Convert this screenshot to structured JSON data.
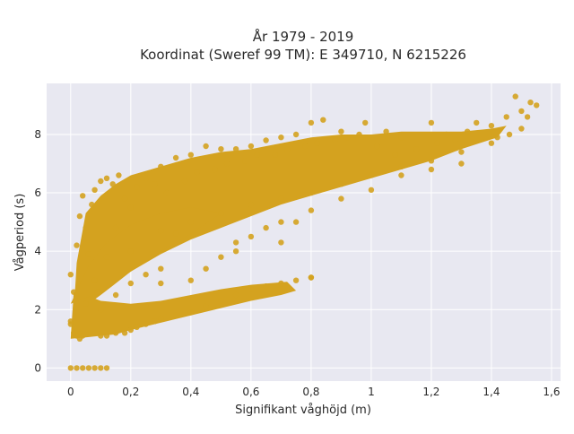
{
  "colors": {
    "point": "#d4a21f",
    "plot_background": "#e8e8f1",
    "grid": "#ffffff",
    "page_background": "#ffffff",
    "text": "#2a2a2a"
  },
  "chart_data": {
    "type": "scatter",
    "title_line1": "År 1979 - 2019",
    "title_line2": "Koordinat (Sweref 99 TM): E 349710, N 6215226",
    "xlabel": "Signifikant våghöjd (m)",
    "ylabel": "Vågperiod (s)",
    "xlim": [
      -0.08,
      1.63
    ],
    "ylim": [
      -0.45,
      9.75
    ],
    "xticks": [
      0,
      0.2,
      0.4,
      0.6,
      0.8,
      1,
      1.2,
      1.4,
      1.6
    ],
    "xtick_labels": [
      "0",
      "0,2",
      "0,4",
      "0,6",
      "0,8",
      "1",
      "1,2",
      "1,4",
      "1,6"
    ],
    "yticks": [
      0,
      2,
      4,
      6,
      8
    ],
    "ytick_labels": [
      "0",
      "2",
      "4",
      "6",
      "8"
    ],
    "grid": true,
    "legend": "none",
    "series": [
      {
        "points": [
          [
            0.0,
            0.0
          ],
          [
            0.02,
            0.0
          ],
          [
            0.04,
            0.0
          ],
          [
            0.06,
            0.0
          ],
          [
            0.08,
            0.0
          ],
          [
            0.1,
            0.0
          ],
          [
            0.12,
            0.0
          ],
          [
            0.0,
            1.5
          ],
          [
            0.0,
            1.6
          ],
          [
            0.0,
            3.2
          ],
          [
            0.01,
            1.2
          ],
          [
            0.01,
            2.6
          ],
          [
            0.02,
            1.1
          ],
          [
            0.02,
            4.2
          ],
          [
            0.03,
            1.0
          ],
          [
            0.03,
            5.2
          ],
          [
            0.04,
            1.1
          ],
          [
            0.04,
            5.9
          ],
          [
            0.05,
            4.8
          ],
          [
            0.06,
            3.9
          ],
          [
            0.07,
            5.6
          ],
          [
            0.08,
            6.1
          ],
          [
            0.09,
            2.6
          ],
          [
            0.1,
            6.4
          ],
          [
            0.1,
            1.1
          ],
          [
            0.12,
            1.1
          ],
          [
            0.12,
            6.5
          ],
          [
            0.14,
            6.3
          ],
          [
            0.15,
            1.2
          ],
          [
            0.16,
            6.6
          ],
          [
            0.18,
            1.2
          ],
          [
            0.2,
            1.3
          ],
          [
            0.22,
            1.4
          ],
          [
            0.25,
            1.5
          ],
          [
            0.28,
            1.6
          ],
          [
            0.3,
            1.7
          ],
          [
            0.35,
            1.8
          ],
          [
            0.4,
            1.9
          ],
          [
            0.45,
            2.1
          ],
          [
            0.5,
            2.3
          ],
          [
            0.55,
            2.5
          ],
          [
            0.6,
            2.7
          ],
          [
            0.65,
            2.8
          ],
          [
            0.7,
            2.9
          ],
          [
            0.75,
            3.0
          ],
          [
            0.8,
            3.1
          ],
          [
            0.1,
            2.0
          ],
          [
            0.15,
            2.5
          ],
          [
            0.2,
            2.9
          ],
          [
            0.25,
            3.2
          ],
          [
            0.3,
            3.4
          ],
          [
            0.2,
            4.0
          ],
          [
            0.3,
            4.7
          ],
          [
            0.4,
            5.0
          ],
          [
            0.5,
            5.3
          ],
          [
            0.6,
            5.6
          ],
          [
            0.7,
            5.8
          ],
          [
            0.8,
            6.0
          ],
          [
            0.9,
            6.3
          ],
          [
            1.0,
            6.6
          ],
          [
            1.1,
            6.9
          ],
          [
            1.2,
            7.1
          ],
          [
            1.3,
            7.4
          ],
          [
            1.4,
            7.7
          ],
          [
            1.5,
            8.2
          ],
          [
            0.2,
            5.5
          ],
          [
            0.25,
            6.5
          ],
          [
            0.3,
            6.9
          ],
          [
            0.35,
            7.2
          ],
          [
            0.4,
            7.3
          ],
          [
            0.45,
            7.6
          ],
          [
            0.5,
            7.5
          ],
          [
            0.55,
            7.5
          ],
          [
            0.6,
            7.6
          ],
          [
            0.65,
            7.8
          ],
          [
            0.7,
            7.9
          ],
          [
            0.75,
            8.0
          ],
          [
            0.8,
            8.4
          ],
          [
            0.84,
            8.5
          ],
          [
            0.9,
            8.1
          ],
          [
            0.98,
            8.4
          ],
          [
            1.05,
            8.1
          ],
          [
            1.1,
            7.9
          ],
          [
            1.2,
            8.4
          ],
          [
            1.25,
            8.0
          ],
          [
            1.32,
            8.1
          ],
          [
            1.35,
            8.4
          ],
          [
            1.4,
            8.3
          ],
          [
            1.45,
            8.6
          ],
          [
            1.48,
            9.3
          ],
          [
            1.5,
            8.8
          ],
          [
            1.52,
            8.6
          ],
          [
            1.55,
            9.0
          ],
          [
            1.53,
            9.1
          ],
          [
            1.46,
            8.0
          ],
          [
            1.42,
            7.9
          ],
          [
            1.3,
            7.0
          ],
          [
            1.2,
            6.8
          ],
          [
            1.1,
            6.6
          ],
          [
            1.0,
            6.1
          ],
          [
            0.9,
            5.8
          ],
          [
            0.8,
            5.4
          ],
          [
            0.7,
            5.0
          ],
          [
            0.6,
            4.5
          ],
          [
            0.5,
            3.8
          ],
          [
            0.45,
            3.4
          ],
          [
            0.55,
            4.0
          ],
          [
            0.65,
            4.8
          ],
          [
            0.75,
            5.0
          ],
          [
            0.8,
            3.1
          ],
          [
            0.7,
            4.3
          ],
          [
            0.55,
            4.3
          ],
          [
            0.4,
            3.0
          ],
          [
            0.35,
            4.6
          ],
          [
            0.3,
            2.9
          ],
          [
            0.25,
            2.1
          ],
          [
            0.05,
            2.2
          ],
          [
            0.08,
            3.0
          ],
          [
            0.12,
            3.8
          ],
          [
            0.15,
            4.8
          ],
          [
            0.18,
            5.8
          ],
          [
            0.22,
            6.2
          ],
          [
            0.28,
            6.3
          ],
          [
            0.32,
            6.0
          ],
          [
            0.38,
            6.4
          ],
          [
            0.42,
            6.7
          ],
          [
            0.48,
            6.8
          ],
          [
            0.52,
            7.0
          ],
          [
            0.58,
            7.1
          ],
          [
            0.62,
            7.3
          ],
          [
            0.68,
            7.3
          ],
          [
            0.72,
            7.5
          ],
          [
            0.78,
            7.6
          ],
          [
            0.82,
            7.7
          ],
          [
            0.88,
            7.8
          ],
          [
            0.92,
            7.9
          ],
          [
            0.96,
            8.0
          ],
          [
            1.02,
            7.6
          ],
          [
            1.08,
            7.3
          ],
          [
            1.15,
            7.5
          ],
          [
            1.22,
            7.7
          ],
          [
            1.28,
            7.8
          ],
          [
            1.38,
            7.9
          ]
        ]
      }
    ]
  }
}
